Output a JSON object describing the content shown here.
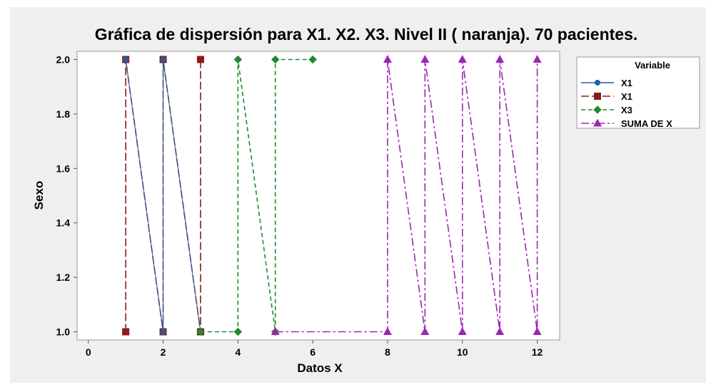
{
  "chart_data": {
    "type": "scatter",
    "title": "Gráfica de dispersión para X1. X2. X3. Nivel II ( naranja). 70 pacientes.",
    "xlabel": "Datos X",
    "ylabel": "Sexo",
    "xlim": [
      -0.3,
      12.6
    ],
    "ylim": [
      0.97,
      2.03
    ],
    "xticks": [
      0,
      2,
      4,
      6,
      8,
      10,
      12
    ],
    "yticks": [
      1.0,
      1.2,
      1.4,
      1.6,
      1.8,
      2.0
    ],
    "grid": false,
    "legend": {
      "title": "Variable",
      "placement": "top-right"
    },
    "series": [
      {
        "name": "X1",
        "color": "#1f5fa8",
        "marker": "circle",
        "line": "solid",
        "points": [
          [
            1,
            2
          ],
          [
            2,
            1
          ],
          [
            2,
            2
          ],
          [
            3,
            1
          ]
        ]
      },
      {
        "name": "X1",
        "color": "#8b1a1a",
        "marker": "square",
        "line": "long-dash",
        "points": [
          [
            1,
            1
          ],
          [
            1,
            2
          ],
          [
            2,
            1
          ],
          [
            2,
            2
          ],
          [
            3,
            1
          ],
          [
            3,
            2
          ]
        ]
      },
      {
        "name": "X3",
        "color": "#1f8a2f",
        "marker": "diamond",
        "line": "dash",
        "points": [
          [
            3,
            1
          ],
          [
            4,
            1
          ],
          [
            4,
            2
          ],
          [
            5,
            1
          ],
          [
            5,
            2
          ],
          [
            6,
            2
          ]
        ]
      },
      {
        "name": "SUMA DE X",
        "color": "#9b27b0",
        "marker": "triangle",
        "line": "dash-dot",
        "points": [
          [
            5,
            1
          ],
          [
            8,
            1
          ],
          [
            8,
            2
          ],
          [
            9,
            1
          ],
          [
            9,
            2
          ],
          [
            10,
            1
          ],
          [
            10,
            2
          ],
          [
            11,
            1
          ],
          [
            11,
            2
          ],
          [
            12,
            1
          ],
          [
            12,
            2
          ]
        ]
      }
    ]
  }
}
